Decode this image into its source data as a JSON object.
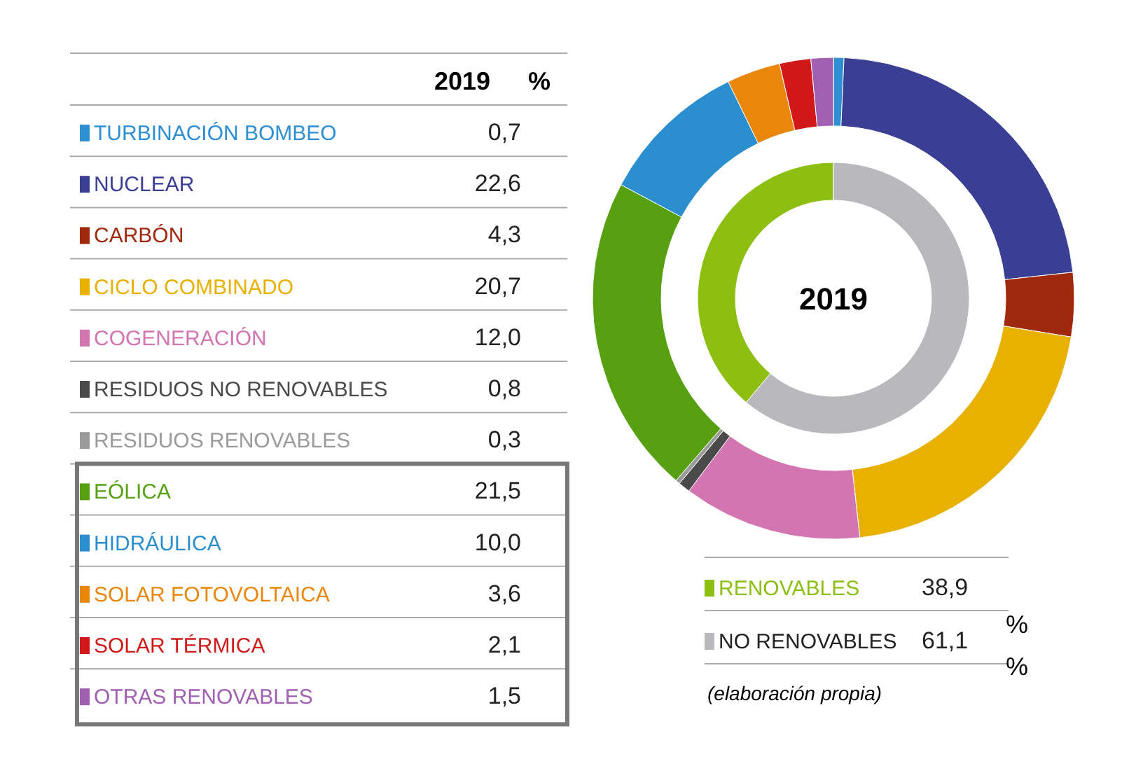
{
  "chart_data": [
    {
      "type": "donut",
      "title": "2019",
      "categories": [
        "TURBINACIÓN BOMBEO",
        "NUCLEAR",
        "CARBÓN",
        "CICLO COMBINADO",
        "COGENERACIÓN",
        "RESIDUOS NO RENOVABLES",
        "RESIDUOS RENOVABLES",
        "EÓLICA",
        "HIDRÁULICA",
        "SOLAR FOTOVOLTAICA",
        "SOLAR TÉRMICA",
        "OTRAS RENOVABLES"
      ],
      "values": [
        0.7,
        22.6,
        4.3,
        20.7,
        12.0,
        0.8,
        0.3,
        21.5,
        10.0,
        3.6,
        2.1,
        1.5
      ],
      "value_labels": [
        "0,7",
        "22,6",
        "4,3",
        "20,7",
        "12,0",
        "0,8",
        "0,3",
        "21,5",
        "10,0",
        "3,6",
        "2,1",
        "1,5"
      ],
      "legend": "left",
      "colors": [
        "#2f8fd3",
        "#3b3f94",
        "#a0280c",
        "#e8b000",
        "#d275b0",
        "#4a4a4a",
        "#9a9a9a",
        "#56a012",
        "#2a8ecf",
        "#e8870a",
        "#d2191a",
        "#a05fb0"
      ],
      "annotations": [
        "%"
      ]
    },
    {
      "type": "donut",
      "title": "2019",
      "categories": [
        "RENOVABLES",
        "NO RENOVABLES"
      ],
      "values": [
        38.9,
        61.1
      ],
      "value_labels": [
        "38,9",
        "61,1"
      ],
      "legend": "bottom",
      "colors": [
        "#8cbf12",
        "#b9b8bc"
      ],
      "annotations": [
        "%",
        "%",
        "(elaboración propia)"
      ]
    }
  ]
}
